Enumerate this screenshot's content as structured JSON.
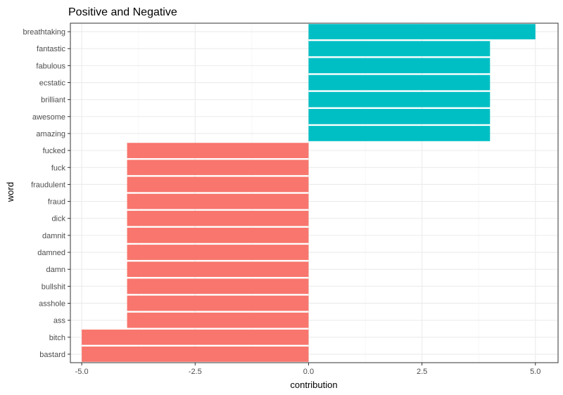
{
  "chart_data": {
    "type": "bar",
    "orientation": "horizontal",
    "title": "Positive and Negative",
    "xlabel": "contribution",
    "ylabel": "word",
    "xlim": [
      -5.25,
      5.5
    ],
    "xticks": [
      -5.0,
      -2.5,
      0.0,
      2.5,
      5.0
    ],
    "xtick_labels": [
      "-5.0",
      "-2.5",
      "0.0",
      "2.5",
      "5.0"
    ],
    "grid": true,
    "colors": {
      "positive": "#00BFC4",
      "negative": "#F8766D"
    },
    "categories": [
      "breathtaking",
      "fantastic",
      "fabulous",
      "ecstatic",
      "brilliant",
      "awesome",
      "amazing",
      "fucked",
      "fuck",
      "fraudulent",
      "fraud",
      "dick",
      "damnit",
      "damned",
      "damn",
      "bullshit",
      "asshole",
      "ass",
      "bitch",
      "bastard"
    ],
    "values": [
      5,
      4,
      4,
      4,
      4,
      4,
      4,
      -4,
      -4,
      -4,
      -4,
      -4,
      -4,
      -4,
      -4,
      -4,
      -4,
      -4,
      -5,
      -5
    ]
  }
}
